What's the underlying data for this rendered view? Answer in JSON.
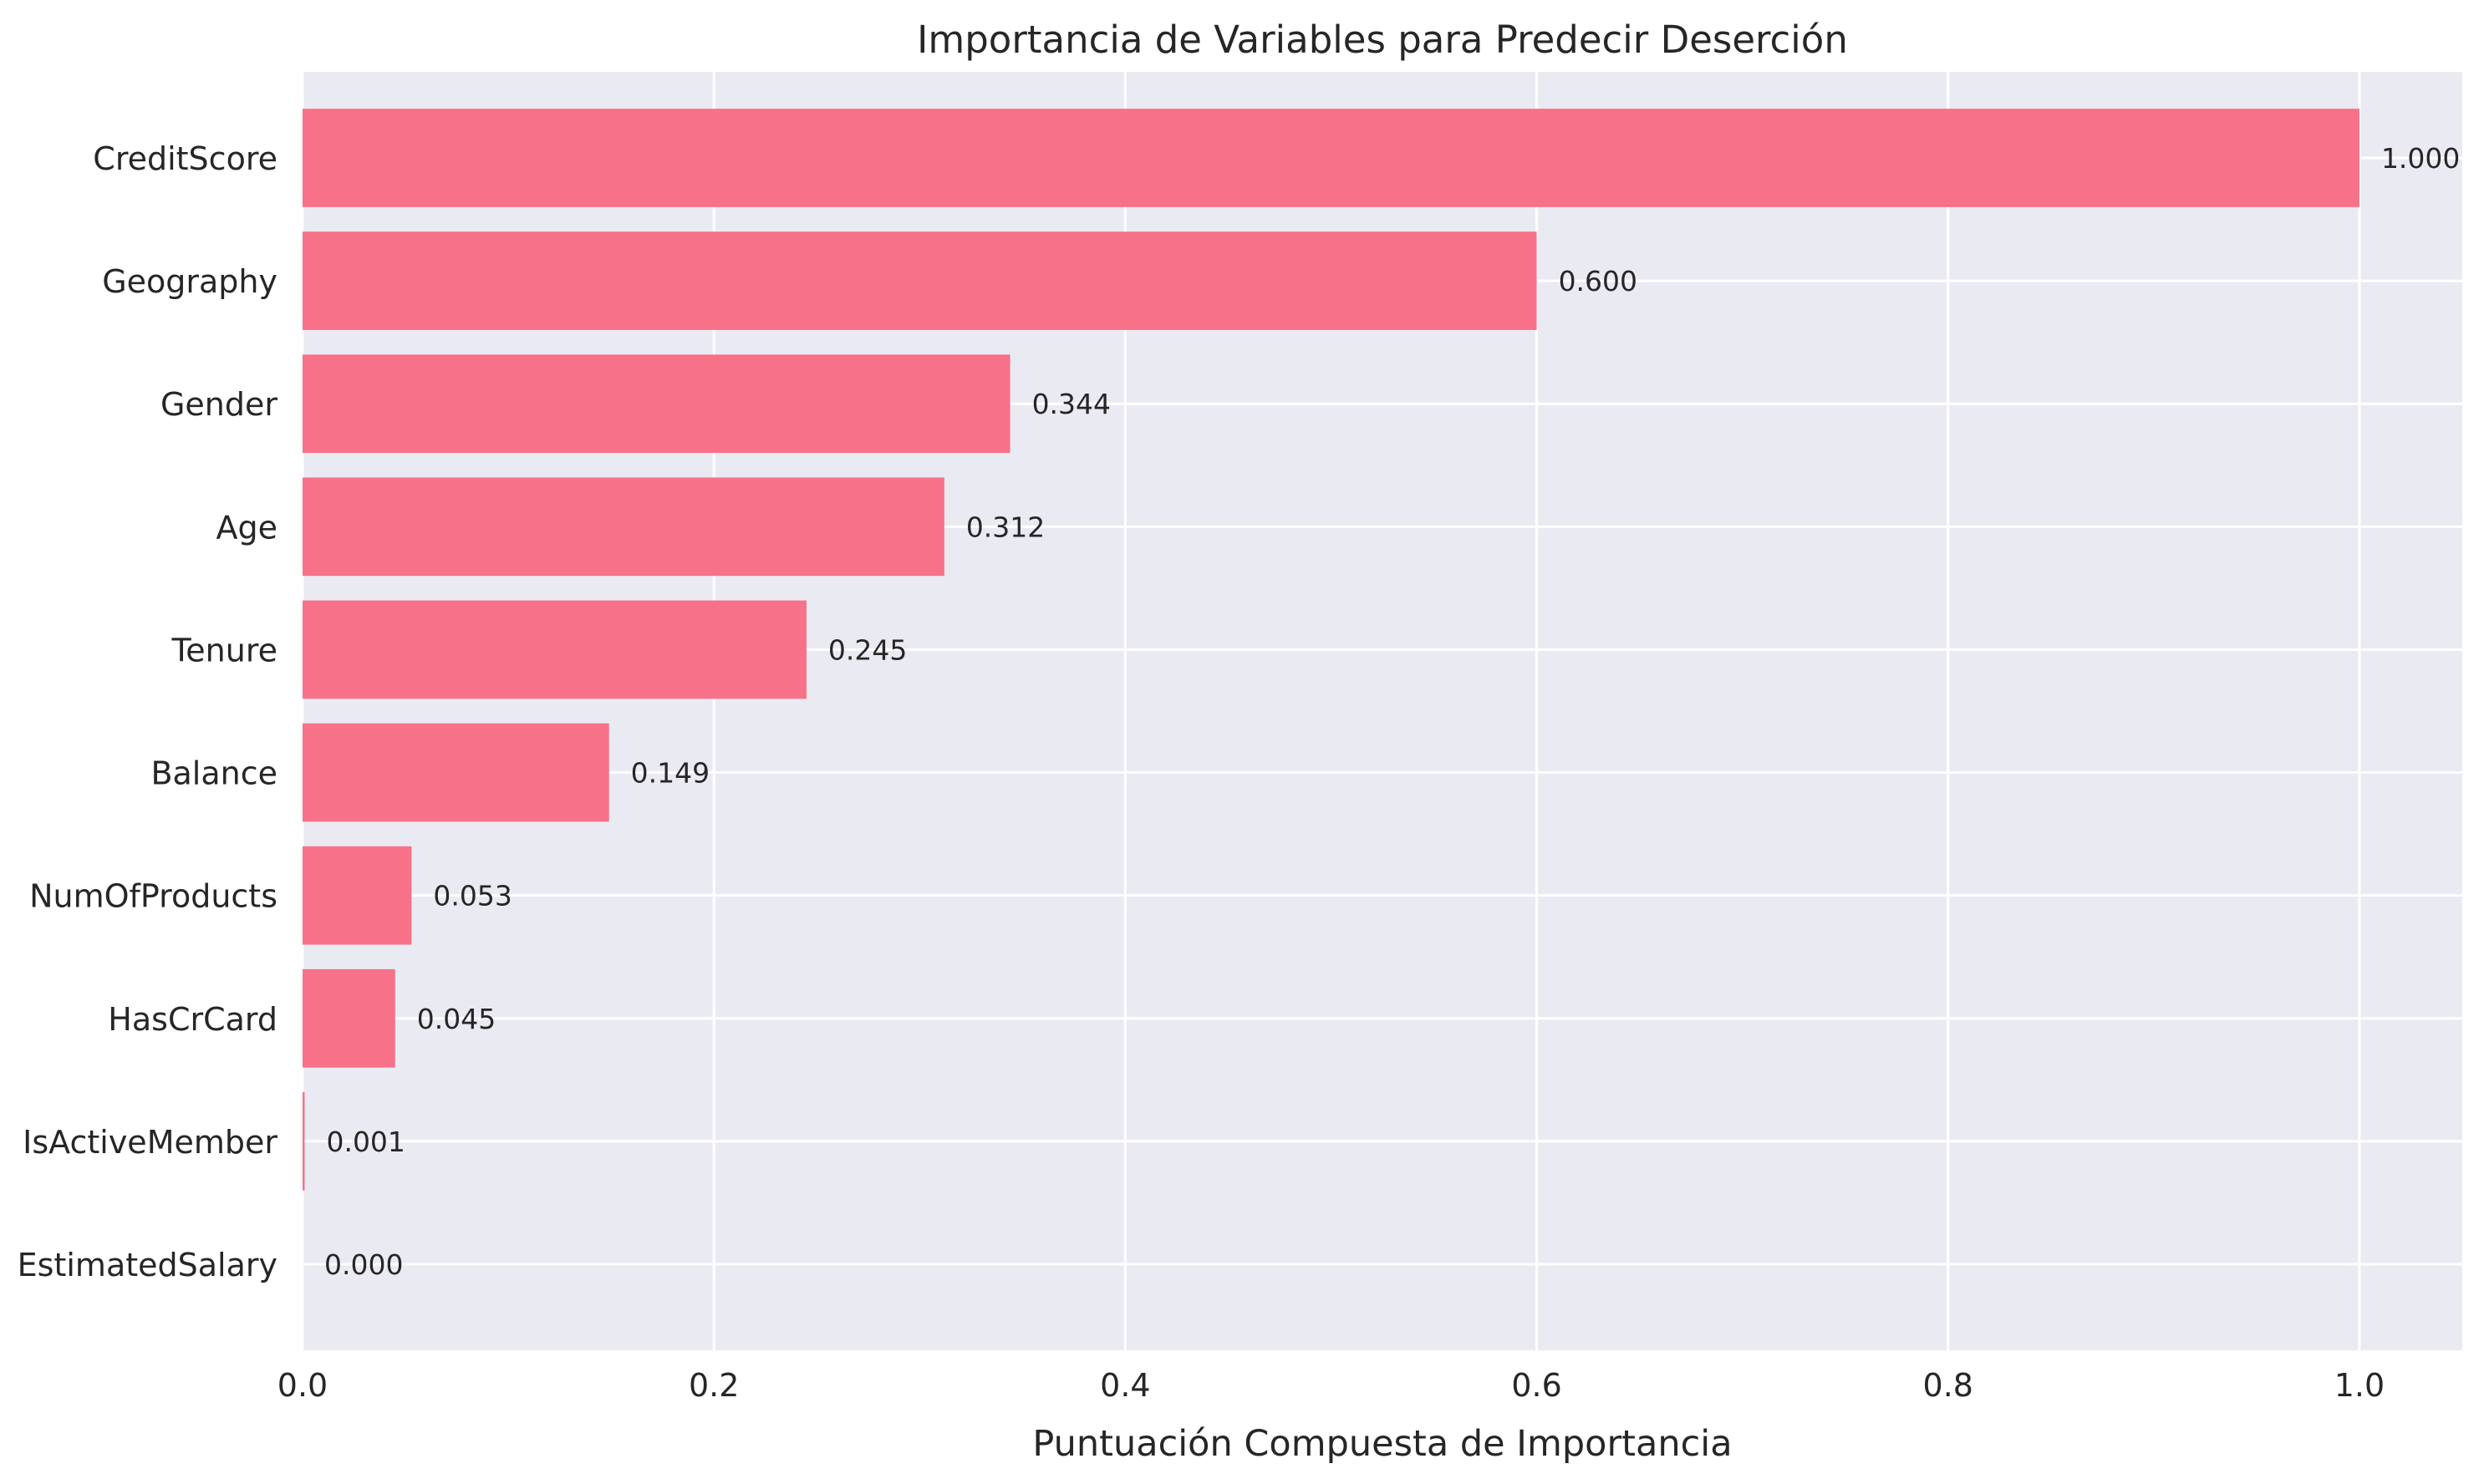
{
  "chart_data": {
    "type": "bar",
    "orientation": "horizontal",
    "title": "Importancia de Variables para Predecir Deserción",
    "xlabel": "Puntuación Compuesta de Importancia",
    "ylabel": "",
    "xlim": [
      0,
      1.05
    ],
    "xticks": [
      0.0,
      0.2,
      0.4,
      0.6,
      0.8,
      1.0
    ],
    "xtick_labels": [
      "0.0",
      "0.2",
      "0.4",
      "0.6",
      "0.8",
      "1.0"
    ],
    "grid": true,
    "bar_color": "#f77189",
    "background_color": "#eaeaf2",
    "categories": [
      "CreditScore",
      "Geography",
      "Gender",
      "Age",
      "Tenure",
      "Balance",
      "NumOfProducts",
      "HasCrCard",
      "IsActiveMember",
      "EstimatedSalary"
    ],
    "values": [
      1.0,
      0.6,
      0.344,
      0.312,
      0.245,
      0.149,
      0.053,
      0.045,
      0.001,
      0.0
    ],
    "value_labels": [
      "1.000",
      "0.600",
      "0.344",
      "0.312",
      "0.245",
      "0.149",
      "0.053",
      "0.045",
      "0.001",
      "0.000"
    ]
  }
}
